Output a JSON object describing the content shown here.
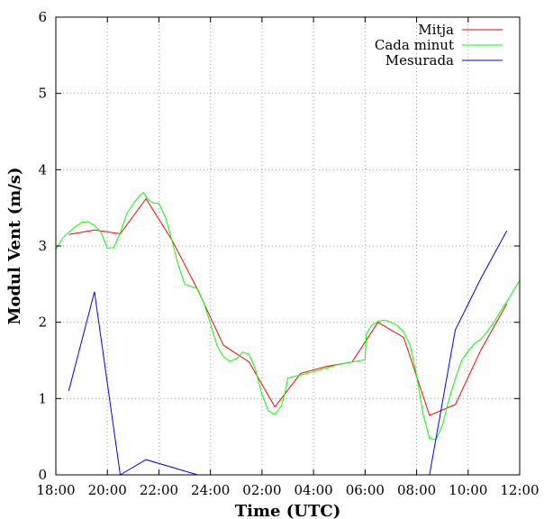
{
  "chart_data": {
    "type": "line",
    "xlabel": "Time (UTC)",
    "ylabel": "Modul Vent (m/s)",
    "xlim": [
      0,
      18
    ],
    "ylim": [
      0,
      6
    ],
    "x_ticks": [
      {
        "v": 0,
        "label": "18:00"
      },
      {
        "v": 2,
        "label": "20:00"
      },
      {
        "v": 4,
        "label": "22:00"
      },
      {
        "v": 6,
        "label": "24:00"
      },
      {
        "v": 8,
        "label": "02:00"
      },
      {
        "v": 10,
        "label": "04:00"
      },
      {
        "v": 12,
        "label": "06:00"
      },
      {
        "v": 14,
        "label": "08:00"
      },
      {
        "v": 16,
        "label": "10:00"
      },
      {
        "v": 18,
        "label": "12:00"
      }
    ],
    "y_ticks": [
      {
        "v": 0,
        "label": "0"
      },
      {
        "v": 1,
        "label": "1"
      },
      {
        "v": 2,
        "label": "2"
      },
      {
        "v": 3,
        "label": "3"
      },
      {
        "v": 4,
        "label": "4"
      },
      {
        "v": 5,
        "label": "5"
      },
      {
        "v": 6,
        "label": "6"
      }
    ],
    "grid": true,
    "legend": "top-right",
    "series": [
      {
        "name": "Mitja",
        "color": "#ff0000",
        "points": [
          [
            0.5,
            3.15
          ],
          [
            1.5,
            3.21
          ],
          [
            2.5,
            3.16
          ],
          [
            3.5,
            3.62
          ],
          [
            4.5,
            3.08
          ],
          [
            5.5,
            2.43
          ],
          [
            6.5,
            1.7
          ],
          [
            7.5,
            1.48
          ],
          [
            8.5,
            0.89
          ],
          [
            9.5,
            1.33
          ],
          [
            10.5,
            1.42
          ],
          [
            11.5,
            1.48
          ],
          [
            12.5,
            2.0
          ],
          [
            13.5,
            1.8
          ],
          [
            14.5,
            0.78
          ],
          [
            15.5,
            0.92
          ],
          [
            16.5,
            1.64
          ],
          [
            17.5,
            2.24
          ]
        ]
      },
      {
        "name": "Cada minut",
        "color": "#00ff00",
        "points": [
          [
            0.0,
            2.95
          ],
          [
            0.25,
            3.1
          ],
          [
            0.5,
            3.18
          ],
          [
            0.75,
            3.25
          ],
          [
            1.0,
            3.31
          ],
          [
            1.25,
            3.32
          ],
          [
            1.5,
            3.27
          ],
          [
            1.75,
            3.18
          ],
          [
            2.0,
            2.97
          ],
          [
            2.25,
            2.98
          ],
          [
            2.5,
            3.17
          ],
          [
            2.75,
            3.42
          ],
          [
            3.0,
            3.55
          ],
          [
            3.25,
            3.66
          ],
          [
            3.4,
            3.7
          ],
          [
            3.6,
            3.6
          ],
          [
            3.8,
            3.56
          ],
          [
            4.0,
            3.56
          ],
          [
            4.25,
            3.38
          ],
          [
            4.5,
            3.08
          ],
          [
            4.75,
            2.75
          ],
          [
            5.0,
            2.5
          ],
          [
            5.25,
            2.47
          ],
          [
            5.5,
            2.44
          ],
          [
            5.75,
            2.25
          ],
          [
            6.0,
            1.98
          ],
          [
            6.25,
            1.7
          ],
          [
            6.5,
            1.55
          ],
          [
            6.75,
            1.49
          ],
          [
            7.0,
            1.52
          ],
          [
            7.25,
            1.61
          ],
          [
            7.5,
            1.58
          ],
          [
            7.75,
            1.38
          ],
          [
            8.0,
            1.05
          ],
          [
            8.25,
            0.84
          ],
          [
            8.5,
            0.79
          ],
          [
            8.75,
            0.9
          ],
          [
            8.9,
            1.08
          ],
          [
            9.0,
            1.27
          ],
          [
            9.5,
            1.31
          ],
          [
            10.0,
            1.35
          ],
          [
            10.5,
            1.4
          ],
          [
            11.0,
            1.45
          ],
          [
            11.5,
            1.48
          ],
          [
            12.0,
            1.51
          ],
          [
            12.05,
            1.85
          ],
          [
            12.25,
            1.96
          ],
          [
            12.5,
            2.01
          ],
          [
            12.75,
            2.03
          ],
          [
            13.0,
            2.0
          ],
          [
            13.25,
            1.96
          ],
          [
            13.5,
            1.87
          ],
          [
            13.75,
            1.7
          ],
          [
            14.0,
            1.3
          ],
          [
            14.25,
            0.8
          ],
          [
            14.5,
            0.48
          ],
          [
            14.75,
            0.46
          ],
          [
            15.0,
            0.65
          ],
          [
            15.25,
            0.98
          ],
          [
            15.5,
            1.26
          ],
          [
            15.75,
            1.5
          ],
          [
            16.0,
            1.62
          ],
          [
            16.25,
            1.72
          ],
          [
            16.5,
            1.78
          ],
          [
            16.75,
            1.88
          ],
          [
            17.0,
            2.0
          ],
          [
            17.25,
            2.14
          ],
          [
            17.5,
            2.27
          ],
          [
            17.75,
            2.41
          ],
          [
            18.0,
            2.55
          ]
        ]
      },
      {
        "name": "Mesurada",
        "color": "#0000ff",
        "points": [
          [
            0.5,
            1.1
          ],
          [
            1.5,
            2.4
          ],
          [
            2.5,
            0.0
          ],
          [
            3.5,
            0.2
          ],
          [
            5.5,
            0.0
          ],
          [
            14.5,
            0.0
          ],
          [
            15.5,
            1.9
          ],
          [
            16.5,
            2.58
          ],
          [
            17.5,
            3.2
          ]
        ]
      }
    ]
  }
}
